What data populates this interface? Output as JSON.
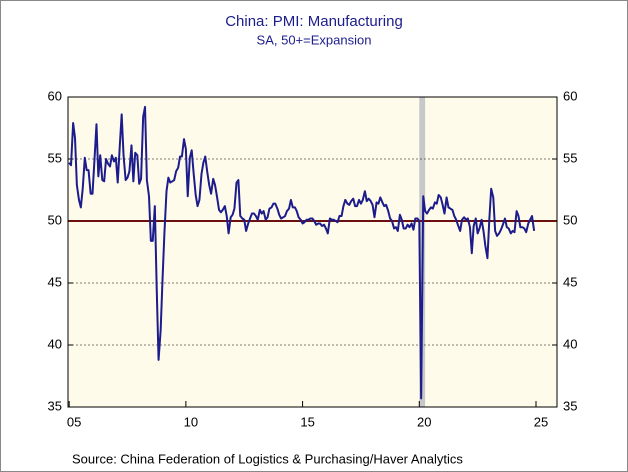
{
  "chart_data": {
    "type": "line",
    "title": "China: PMI: Manufacturing",
    "subtitle": "SA, 50+=Expansion",
    "source": "Source:  China Federation of Logistics & Purchasing/Haver Analytics",
    "x": [
      2005.0,
      2005.08,
      2005.17,
      2005.25,
      2005.33,
      2005.42,
      2005.5,
      2005.58,
      2005.67,
      2005.75,
      2005.83,
      2005.92,
      2006.0,
      2006.08,
      2006.17,
      2006.25,
      2006.33,
      2006.42,
      2006.5,
      2006.58,
      2006.67,
      2006.75,
      2006.83,
      2006.92,
      2007.0,
      2007.08,
      2007.17,
      2007.25,
      2007.33,
      2007.42,
      2007.5,
      2007.58,
      2007.67,
      2007.75,
      2007.83,
      2007.92,
      2008.0,
      2008.08,
      2008.17,
      2008.25,
      2008.33,
      2008.42,
      2008.5,
      2008.58,
      2008.67,
      2008.75,
      2008.83,
      2008.92,
      2009.0,
      2009.08,
      2009.17,
      2009.25,
      2009.33,
      2009.42,
      2009.5,
      2009.58,
      2009.67,
      2009.75,
      2009.83,
      2009.92,
      2010.0,
      2010.08,
      2010.17,
      2010.25,
      2010.33,
      2010.42,
      2010.5,
      2010.58,
      2010.67,
      2010.75,
      2010.83,
      2010.92,
      2011.0,
      2011.08,
      2011.17,
      2011.25,
      2011.33,
      2011.42,
      2011.5,
      2011.58,
      2011.67,
      2011.75,
      2011.83,
      2011.92,
      2012.0,
      2012.08,
      2012.17,
      2012.25,
      2012.33,
      2012.42,
      2012.5,
      2012.58,
      2012.67,
      2012.75,
      2012.83,
      2012.92,
      2013.0,
      2013.08,
      2013.17,
      2013.25,
      2013.33,
      2013.42,
      2013.5,
      2013.58,
      2013.67,
      2013.75,
      2013.83,
      2013.92,
      2014.0,
      2014.08,
      2014.17,
      2014.25,
      2014.33,
      2014.42,
      2014.5,
      2014.58,
      2014.67,
      2014.75,
      2014.83,
      2014.92,
      2015.0,
      2015.08,
      2015.17,
      2015.25,
      2015.33,
      2015.42,
      2015.5,
      2015.58,
      2015.67,
      2015.75,
      2015.83,
      2015.92,
      2016.0,
      2016.08,
      2016.17,
      2016.25,
      2016.33,
      2016.42,
      2016.5,
      2016.58,
      2016.67,
      2016.75,
      2016.83,
      2016.92,
      2017.0,
      2017.08,
      2017.17,
      2017.25,
      2017.33,
      2017.42,
      2017.5,
      2017.58,
      2017.67,
      2017.75,
      2017.83,
      2017.92,
      2018.0,
      2018.08,
      2018.17,
      2018.25,
      2018.33,
      2018.42,
      2018.5,
      2018.58,
      2018.67,
      2018.75,
      2018.83,
      2018.92,
      2019.0,
      2019.08,
      2019.17,
      2019.25,
      2019.33,
      2019.42,
      2019.5,
      2019.58,
      2019.67,
      2019.75,
      2019.83,
      2019.92,
      2020.0,
      2020.08,
      2020.17,
      2020.25,
      2020.33,
      2020.42,
      2020.5,
      2020.58,
      2020.67,
      2020.75,
      2020.83,
      2020.92,
      2021.0,
      2021.08,
      2021.17,
      2021.25,
      2021.33,
      2021.42,
      2021.5,
      2021.58,
      2021.67,
      2021.75,
      2021.83,
      2021.92,
      2022.0,
      2022.08,
      2022.17,
      2022.25,
      2022.33,
      2022.42,
      2022.5,
      2022.58,
      2022.67,
      2022.75,
      2022.83,
      2022.92,
      2023.0,
      2023.08,
      2023.17,
      2023.25,
      2023.33,
      2023.42,
      2023.5,
      2023.58,
      2023.67,
      2023.75,
      2023.83,
      2023.92,
      2024.0,
      2024.08,
      2024.17,
      2024.25,
      2024.33,
      2024.42,
      2024.5,
      2024.58,
      2024.67,
      2024.75,
      2024.83,
      2024.92
    ],
    "series": [
      {
        "color": "#1c1c8c",
        "values": [
          54.7,
          54.5,
          57.9,
          56.7,
          52.9,
          51.7,
          51.1,
          52.6,
          55.1,
          54.1,
          54.1,
          52.2,
          52.2,
          54.8,
          57.8,
          53.6,
          55.3,
          53.3,
          53.2,
          55.0,
          54.6,
          54.4,
          55.3,
          54.8,
          55.1,
          53.1,
          56.1,
          58.6,
          55.3,
          53.3,
          53.5,
          54.0,
          56.1,
          53.2,
          55.5,
          55.3,
          53.0,
          53.4,
          58.4,
          59.2,
          53.3,
          52.0,
          48.4,
          48.4,
          51.2,
          44.6,
          38.8,
          41.2,
          45.3,
          49.0,
          52.4,
          53.5,
          53.1,
          53.2,
          53.3,
          54.0,
          54.3,
          55.2,
          55.2,
          56.6,
          55.8,
          52.0,
          55.1,
          55.7,
          53.9,
          52.1,
          51.2,
          51.7,
          53.8,
          54.7,
          55.2,
          53.9,
          52.9,
          52.2,
          53.4,
          52.9,
          52.0,
          50.9,
          50.7,
          50.9,
          51.2,
          50.4,
          49.0,
          50.3,
          50.5,
          51.0,
          53.1,
          53.3,
          50.4,
          50.2,
          50.1,
          49.2,
          49.8,
          50.2,
          50.6,
          50.6,
          50.4,
          50.1,
          50.9,
          50.6,
          50.8,
          50.1,
          50.3,
          51.0,
          51.1,
          51.4,
          51.4,
          51.0,
          50.5,
          50.2,
          50.3,
          50.4,
          50.8,
          51.0,
          51.7,
          51.1,
          51.1,
          50.8,
          50.3,
          50.1,
          49.8,
          49.9,
          50.1,
          50.1,
          50.2,
          50.2,
          50.0,
          49.7,
          49.8,
          49.8,
          49.6,
          49.7,
          49.4,
          49.0,
          50.2,
          50.1,
          50.1,
          50.0,
          49.9,
          50.4,
          50.4,
          51.2,
          51.7,
          51.4,
          51.3,
          51.6,
          51.8,
          51.2,
          51.2,
          51.7,
          51.4,
          51.7,
          52.4,
          51.6,
          51.8,
          51.6,
          51.3,
          50.3,
          51.5,
          51.4,
          51.9,
          51.5,
          51.2,
          51.3,
          50.8,
          50.2,
          50.0,
          49.4,
          49.5,
          49.2,
          50.5,
          50.1,
          49.4,
          49.4,
          49.7,
          49.5,
          49.8,
          49.3,
          50.2,
          50.2,
          50.0,
          35.7,
          52.0,
          50.8,
          50.6,
          50.9,
          51.1,
          51.0,
          51.5,
          51.4,
          52.1,
          51.9,
          51.3,
          50.6,
          51.9,
          51.1,
          51.0,
          50.9,
          50.4,
          50.1,
          49.6,
          49.2,
          50.1,
          50.3,
          50.1,
          50.2,
          49.5,
          47.4,
          49.6,
          50.2,
          49.0,
          49.4,
          50.1,
          49.2,
          48.0,
          47.0,
          50.1,
          52.6,
          51.9,
          49.2,
          48.8,
          49.0,
          49.3,
          49.7,
          50.2,
          49.5,
          49.4,
          49.0,
          49.2,
          49.1,
          50.8,
          50.4,
          49.5,
          49.5,
          49.4,
          49.1,
          49.8,
          50.1,
          50.4,
          49.2
        ]
      }
    ],
    "xlim": [
      2004.95,
      2025.9
    ],
    "xticks": [
      {
        "value": 2005,
        "label": "05"
      },
      {
        "value": 2010,
        "label": "10"
      },
      {
        "value": 2015,
        "label": "15"
      },
      {
        "value": 2020,
        "label": "20"
      },
      {
        "value": 2025,
        "label": "25"
      }
    ],
    "ylim": [
      35,
      60
    ],
    "yticks": [
      35,
      40,
      45,
      50,
      55,
      60
    ],
    "grid": true,
    "reference_line": {
      "value": 50,
      "color": "#6b0f0f"
    },
    "shade": {
      "x": [
        2020.0,
        2020.25
      ],
      "color": "#c8c8c8"
    },
    "plot_background": "#fffbea"
  }
}
